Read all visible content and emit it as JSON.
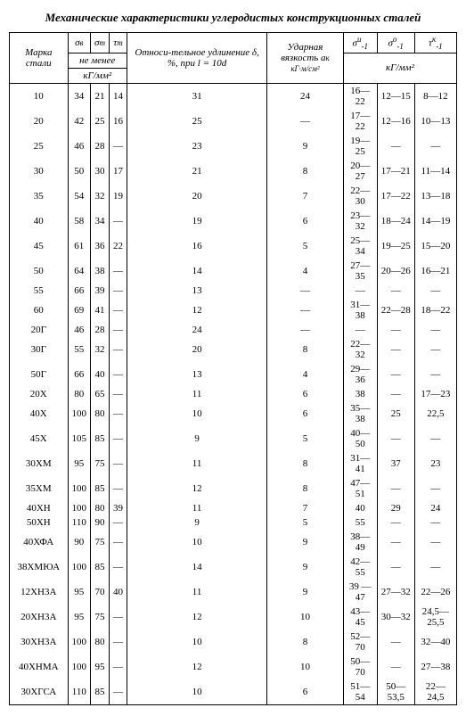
{
  "title": "Механические характеристики углеродистых конструкционных сталей",
  "headers": {
    "col_marka": "Марка стали",
    "col_sigma_v": "σ",
    "sub_v": "в",
    "col_sigma_t": "σ",
    "sub_t": "т",
    "col_tau_t": "τ",
    "sub_tau": "т",
    "col_udl": "Относи-тельное удлинение δ, %, при l = 10d",
    "col_impact": "Ударная вязкость a",
    "sub_impact": "к",
    "impact_unit": "кГ·м/см²",
    "col_sigma_1n": "σ",
    "sup_n": "и",
    "sub_1": "-1",
    "col_sigma_1o": "σ",
    "sup_o": "о",
    "col_tau_1k": "τ",
    "sup_k": "к",
    "group_notless": "не менее",
    "group_unit1": "кГ/мм²",
    "group_unit2": "кГ/мм²"
  },
  "rows": [
    {
      "m": "10",
      "sv": "34",
      "st": "21",
      "tt": "14",
      "d": "31",
      "a": "24",
      "s1": "16—22",
      "s2": "12—15",
      "t1": "8—12"
    },
    {
      "m": "20",
      "sv": "42",
      "st": "25",
      "tt": "16",
      "d": "25",
      "a": "—",
      "s1": "17—22",
      "s2": "12—16",
      "t1": "10—13"
    },
    {
      "m": "25",
      "sv": "46",
      "st": "28",
      "tt": "—",
      "d": "23",
      "a": "9",
      "s1": "19—25",
      "s2": "—",
      "t1": "—"
    },
    {
      "m": "30",
      "sv": "50",
      "st": "30",
      "tt": "17",
      "d": "21",
      "a": "8",
      "s1": "20—27",
      "s2": "17—21",
      "t1": "11—14"
    },
    {
      "m": "35",
      "sv": "54",
      "st": "32",
      "tt": "19",
      "d": "20",
      "a": "7",
      "s1": "22—30",
      "s2": "17—22",
      "t1": "13—18"
    },
    {
      "m": "40",
      "sv": "58",
      "st": "34",
      "tt": "—",
      "d": "19",
      "a": "6",
      "s1": "23—32",
      "s2": "18—24",
      "t1": "14—19"
    },
    {
      "m": "45",
      "sv": "61",
      "st": "36",
      "tt": "22",
      "d": "16",
      "a": "5",
      "s1": "25—34",
      "s2": "19—25",
      "t1": "15—20"
    },
    {
      "m": "50",
      "sv": "64",
      "st": "38",
      "tt": "—",
      "d": "14",
      "a": "4",
      "s1": "27—35",
      "s2": "20—26",
      "t1": "16—21"
    },
    {
      "m": "55",
      "sv": "66",
      "st": "39",
      "tt": "—",
      "d": "13",
      "a": "—",
      "s1": "—",
      "s2": "—",
      "t1": "—"
    },
    {
      "m": "60",
      "sv": "69",
      "st": "41",
      "tt": "—",
      "d": "12",
      "a": "—",
      "s1": "31—38",
      "s2": "22—28",
      "t1": "18—22"
    },
    {
      "m": "20Г",
      "sv": "46",
      "st": "28",
      "tt": "—",
      "d": "24",
      "a": "—",
      "s1": "—",
      "s2": "—",
      "t1": "—"
    },
    {
      "m": "30Г",
      "sv": "55",
      "st": "32",
      "tt": "—",
      "d": "20",
      "a": "8",
      "s1": "22—32",
      "s2": "—",
      "t1": "—"
    },
    {
      "m": "50Г",
      "sv": "66",
      "st": "40",
      "tt": "—",
      "d": "13",
      "a": "4",
      "s1": "29—36",
      "s2": "—",
      "t1": "—"
    },
    {
      "m": "20Х",
      "sv": "80",
      "st": "65",
      "tt": "—",
      "d": "11",
      "a": "6",
      "s1": "38",
      "s2": "—",
      "t1": "17—23"
    },
    {
      "m": "40Х",
      "sv": "100",
      "st": "80",
      "tt": "—",
      "d": "10",
      "a": "6",
      "s1": "35—38",
      "s2": "25",
      "t1": "22,5"
    },
    {
      "m": "45Х",
      "sv": "105",
      "st": "85",
      "tt": "—",
      "d": "9",
      "a": "5",
      "s1": "40—50",
      "s2": "—",
      "t1": "—"
    },
    {
      "m": "30ХМ",
      "sv": "95",
      "st": "75",
      "tt": "—",
      "d": "11",
      "a": "8",
      "s1": "31—41",
      "s2": "37",
      "t1": "23"
    },
    {
      "m": "35ХМ",
      "sv": "100",
      "st": "85",
      "tt": "—",
      "d": "12",
      "a": "8",
      "s1": "47—51",
      "s2": "—",
      "t1": "—"
    },
    {
      "m": "40ХН",
      "sv": "100",
      "st": "80",
      "tt": "39",
      "d": "11",
      "a": "7",
      "s1": "40",
      "s2": "29",
      "t1": "24"
    },
    {
      "m": "50ХН",
      "sv": "110",
      "st": "90",
      "tt": "—",
      "d": "9",
      "a": "5",
      "s1": "55",
      "s2": "—",
      "t1": "—"
    },
    {
      "m": "40ХФА",
      "sv": "90",
      "st": "75",
      "tt": "—",
      "d": "10",
      "a": "9",
      "s1": "38—49",
      "s2": "—",
      "t1": "—"
    },
    {
      "m": "38ХМЮА",
      "sv": "100",
      "st": "85",
      "tt": "—",
      "d": "14",
      "a": "9",
      "s1": "42—55",
      "s2": "—",
      "t1": "—"
    },
    {
      "m": "12ХН3А",
      "sv": "95",
      "st": "70",
      "tt": "40",
      "d": "11",
      "a": "9",
      "s1": "39 —47",
      "s2": "27—32",
      "t1": "22—26"
    },
    {
      "m": "20ХН3А",
      "sv": "95",
      "st": "75",
      "tt": "—",
      "d": "12",
      "a": "10",
      "s1": "43—45",
      "s2": "30—32",
      "t1": "24,5—25,5"
    },
    {
      "m": "30ХН3А",
      "sv": "100",
      "st": "80",
      "tt": "—",
      "d": "10",
      "a": "8",
      "s1": "52—70",
      "s2": "—",
      "t1": "32—40"
    },
    {
      "m": "40ХНМА",
      "sv": "100",
      "st": "95",
      "tt": "—",
      "d": "12",
      "a": "10",
      "s1": "50—70",
      "s2": "—",
      "t1": "27—38"
    },
    {
      "m": "30ХГСА",
      "sv": "110",
      "st": "85",
      "tt": "—",
      "d": "10",
      "a": "6",
      "s1": "51—54",
      "s2": "50—53,5",
      "t1": "22—24,5"
    }
  ]
}
